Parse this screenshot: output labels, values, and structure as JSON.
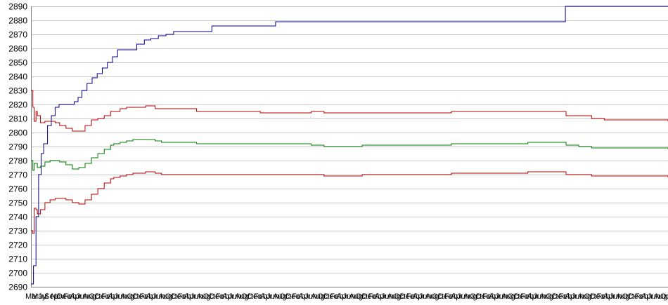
{
  "chart_data": {
    "type": "line",
    "title": "",
    "xlabel": "",
    "ylabel": "",
    "ylim": [
      2690,
      2890
    ],
    "yticks": [
      2690,
      2700,
      2710,
      2720,
      2730,
      2740,
      2750,
      2760,
      2770,
      2780,
      2790,
      2800,
      2810,
      2820,
      2830,
      2840,
      2850,
      2860,
      2870,
      2880,
      2890
    ],
    "grid": "horizontal",
    "legend": "none",
    "x_tick_labels_note": "overlapping month abbreviations (Mar, Apr, May, Jun, Jul, Aug, Sep, Oct, Nov, Dec) repeated along the x-axis",
    "x_tick_labels": [
      "Mar",
      "May",
      "Jul",
      "Sep",
      "Nov",
      "Dec",
      "Feb",
      "Apr",
      "Jun",
      "Aug",
      "Oct",
      "Dec",
      "Feb",
      "Apr",
      "Jun",
      "Aug",
      "Oct",
      "Dec",
      "Feb",
      "Apr",
      "Jun",
      "Aug",
      "Oct",
      "Dec",
      "Feb",
      "Apr",
      "Jun",
      "Aug",
      "Oct",
      "Dec",
      "Feb",
      "Apr",
      "Jun",
      "Aug",
      "Oct",
      "Dec",
      "Feb",
      "Apr",
      "Jun",
      "Aug",
      "Oct",
      "Dec",
      "Feb",
      "Apr",
      "Jun",
      "Aug",
      "Oct",
      "Dec",
      "Feb",
      "Apr",
      "Jun",
      "Aug",
      "Oct",
      "Dec",
      "Feb",
      "Apr",
      "Jun",
      "Aug",
      "Oct",
      "Dec",
      "Feb",
      "Apr",
      "Jun",
      "Aug",
      "Oct",
      "Dec",
      "Feb",
      "Apr",
      "Jun",
      "Aug",
      "Oct",
      "Dec",
      "Feb",
      "Apr",
      "Jun",
      "Aug",
      "Oct",
      "Dec",
      "Feb",
      "Apr",
      "Jun",
      "Aug",
      "Oct",
      "Dec",
      "Feb",
      "Apr",
      "Jun",
      "Aug",
      "Oct",
      "Dec",
      "Feb",
      "Apr",
      "Jun",
      "Aug",
      "Oct",
      "Dec",
      "Feb",
      "Apr",
      "Jun",
      "Aug",
      "Oct"
    ],
    "x_range": [
      0,
      100
    ],
    "series": [
      {
        "color": "#00008b",
        "x": [
          0,
          0.4,
          0.8,
          1.2,
          1.6,
          2.0,
          2.6,
          3.2,
          3.8,
          4.4,
          5.0,
          5.6,
          6.2,
          6.8,
          7.4,
          8.0,
          8.8,
          9.6,
          10.4,
          11.2,
          12.0,
          12.8,
          13.6,
          14.6,
          15.6,
          16.6,
          17.8,
          18.8,
          20.0,
          21.2,
          22.4,
          27.4,
          28.4,
          36.4,
          38.4,
          48.0,
          63.0,
          83.5,
          83.9,
          100
        ],
        "values": [
          2692,
          2705,
          2740,
          2770,
          2785,
          2792,
          2805,
          2812,
          2818,
          2820,
          2820,
          2820,
          2820,
          2822,
          2825,
          2830,
          2835,
          2839,
          2842,
          2846,
          2850,
          2854,
          2859,
          2859,
          2859,
          2863,
          2866,
          2867,
          2869,
          2870,
          2872,
          2872,
          2876,
          2876,
          2879,
          2879,
          2879,
          2879,
          2890,
          2890
        ]
      },
      {
        "color": "#b40000",
        "x": [
          0,
          0.3,
          0.5,
          0.8,
          1.0,
          1.5,
          2.2,
          3.0,
          3.8,
          4.5,
          5.5,
          6.5,
          7.5,
          8.5,
          9.5,
          10.5,
          11.5,
          12.5,
          13.0,
          14.0,
          15.0,
          16.0,
          18.0,
          19.5,
          20.5,
          22.0,
          26.0,
          30.0,
          36.0,
          40.0,
          44.0,
          46.0,
          52.0,
          60.0,
          66.0,
          72.0,
          78.0,
          83.0,
          83.5,
          84.0,
          86.0,
          88.0,
          90.0,
          94.0,
          100
        ],
        "values": [
          2830,
          2818,
          2808,
          2815,
          2812,
          2807,
          2808,
          2808,
          2807,
          2805,
          2803,
          2801,
          2801,
          2805,
          2809,
          2810,
          2812,
          2815,
          2815,
          2817,
          2818,
          2818,
          2819,
          2817,
          2817,
          2817,
          2815,
          2815,
          2814,
          2814,
          2815,
          2814,
          2814,
          2814,
          2815,
          2815,
          2815,
          2815,
          2815,
          2812,
          2812,
          2810,
          2809,
          2809,
          2808
        ]
      },
      {
        "color": "#007800",
        "x": [
          0,
          0.3,
          0.5,
          0.8,
          1.0,
          1.5,
          2.2,
          3.0,
          3.8,
          4.5,
          5.5,
          6.5,
          7.5,
          8.5,
          9.5,
          10.5,
          11.5,
          12.5,
          13.0,
          14.0,
          15.0,
          16.0,
          18.0,
          19.5,
          20.5,
          22.0,
          26.0,
          30.0,
          36.0,
          40.0,
          44.0,
          46.0,
          52.0,
          60.0,
          66.0,
          72.0,
          78.0,
          83.0,
          83.5,
          84.0,
          86.0,
          88.0,
          90.0,
          94.0,
          100
        ],
        "values": [
          2780,
          2773,
          2778,
          2778,
          2775,
          2776,
          2779,
          2780,
          2780,
          2779,
          2777,
          2774,
          2775,
          2778,
          2782,
          2785,
          2788,
          2791,
          2792,
          2793,
          2794,
          2795,
          2795,
          2794,
          2793,
          2793,
          2792,
          2792,
          2792,
          2792,
          2791,
          2790,
          2791,
          2791,
          2792,
          2792,
          2793,
          2793,
          2793,
          2791,
          2790,
          2789,
          2789,
          2789,
          2788
        ]
      },
      {
        "color": "#b40000",
        "x": [
          0,
          0.3,
          0.5,
          0.8,
          1.0,
          1.5,
          2.2,
          3.0,
          3.8,
          4.5,
          5.5,
          6.5,
          7.5,
          8.5,
          9.5,
          10.5,
          11.5,
          12.5,
          13.0,
          14.0,
          15.0,
          16.0,
          18.0,
          19.5,
          20.5,
          22.0,
          26.0,
          30.0,
          36.0,
          40.0,
          44.0,
          46.0,
          52.0,
          60.0,
          66.0,
          72.0,
          78.0,
          83.0,
          83.5,
          84.0,
          86.0,
          88.0,
          90.0,
          94.0,
          100
        ],
        "values": [
          2730,
          2728,
          2746,
          2745,
          2742,
          2745,
          2750,
          2752,
          2753,
          2753,
          2752,
          2750,
          2749,
          2752,
          2756,
          2760,
          2764,
          2767,
          2768,
          2769,
          2770,
          2771,
          2772,
          2771,
          2770,
          2770,
          2770,
          2770,
          2770,
          2770,
          2770,
          2769,
          2770,
          2770,
          2771,
          2771,
          2772,
          2772,
          2772,
          2770,
          2770,
          2769,
          2769,
          2769,
          2768
        ]
      }
    ]
  }
}
